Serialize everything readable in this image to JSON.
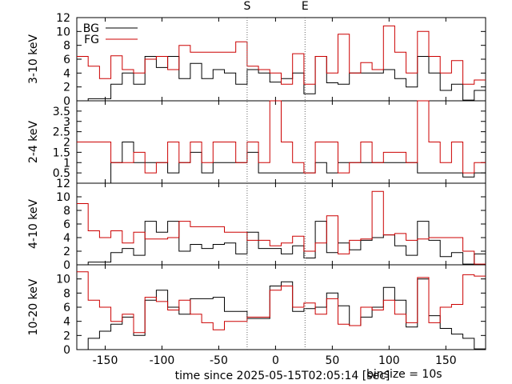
{
  "colors": {
    "fg": "#cc0000",
    "bg": "#000000",
    "frame": "#000000",
    "marker": "#666666"
  },
  "markers": [
    {
      "label": "S",
      "x": -25
    },
    {
      "label": "E",
      "x": 26
    }
  ],
  "chart_data": {
    "type": "line",
    "style": "step",
    "x_axis": {
      "label": "time since 2025-05-15T02:05:14 [sec]",
      "range": [
        -175,
        185
      ],
      "ticks": [
        -150,
        -100,
        -50,
        0,
        50,
        100,
        150
      ]
    },
    "binsize_label": "binsize = 10s",
    "legend": {
      "position": "top-left",
      "entries": [
        "BG",
        "FG"
      ]
    },
    "bin_edges": [
      -175,
      -165,
      -155,
      -145,
      -135,
      -125,
      -115,
      -105,
      -95,
      -85,
      -75,
      -65,
      -55,
      -45,
      -35,
      -25,
      -15,
      -5,
      5,
      15,
      25,
      35,
      45,
      55,
      65,
      75,
      85,
      95,
      105,
      115,
      125,
      135,
      145,
      155,
      165,
      175,
      185
    ],
    "panels": [
      {
        "ylabel": "3-10 keV",
        "ylim": [
          0,
          12
        ],
        "yticks": [
          0,
          2,
          4,
          6,
          8,
          10,
          12
        ],
        "series": [
          {
            "name": "BG",
            "values": [
              0,
              0.3,
              0.3,
              2.4,
              4,
              2.4,
              6.4,
              4.8,
              6.4,
              3.2,
              5.4,
              3.2,
              4.5,
              4,
              2.4,
              4.5,
              4,
              2.7,
              3.2,
              4,
              1,
              6.4,
              2.6,
              2.4,
              4,
              4,
              4,
              4.5,
              3.2,
              2,
              6.4,
              4,
              1.5,
              2.4,
              0.1,
              1.5
            ]
          },
          {
            "name": "FG",
            "values": [
              6.4,
              5,
              3.2,
              6.5,
              4.5,
              4,
              6,
              6.4,
              4.5,
              8,
              7,
              7,
              7,
              7,
              8.5,
              5,
              4.5,
              4,
              2.4,
              6.8,
              2.4,
              6.4,
              4,
              9.6,
              4,
              5.5,
              4.5,
              10.8,
              7,
              4,
              10,
              6.4,
              4,
              5.8,
              2.4,
              3
            ]
          }
        ]
      },
      {
        "ylabel": "2-4 keV",
        "ylim": [
          0,
          4
        ],
        "yticks": [
          0.5,
          1,
          1.5,
          2,
          2.5,
          3,
          3.5
        ],
        "series": [
          {
            "name": "BG",
            "values": [
              0,
              0,
              0,
              1,
              2,
              1,
              1,
              1,
              0.5,
              1,
              1.5,
              0.5,
              1,
              1,
              1,
              1.5,
              0.5,
              0.5,
              0.5,
              0.5,
              0.5,
              1,
              0.5,
              1,
              1,
              1,
              1,
              1,
              1,
              1,
              0.5,
              0.5,
              0.5,
              0.5,
              0.3,
              0.5
            ]
          },
          {
            "name": "FG",
            "values": [
              2,
              2,
              2,
              1,
              1,
              1.5,
              0.5,
              1,
              2,
              1,
              2,
              1,
              2,
              2,
              1,
              2,
              1,
              4,
              2,
              1,
              0.5,
              2,
              2,
              0.5,
              1,
              2,
              1,
              1.5,
              1.5,
              1,
              4,
              2,
              1,
              2,
              0.5,
              1
            ]
          }
        ]
      },
      {
        "ylabel": "4-10 keV",
        "ylim": [
          0,
          12
        ],
        "yticks": [
          0,
          2,
          4,
          6,
          8,
          10,
          12
        ],
        "series": [
          {
            "name": "BG",
            "values": [
              0,
              0.4,
              0.4,
              1.8,
              2.4,
              1.4,
              6.4,
              4.8,
              6.4,
              2,
              3,
              2.4,
              3,
              3.2,
              1.6,
              4.8,
              2.4,
              2.4,
              1.6,
              2.8,
              1,
              6.4,
              1.8,
              3.2,
              2.2,
              3.6,
              4,
              4.4,
              2.8,
              1.4,
              6.4,
              3.6,
              1.2,
              1.8,
              0.1,
              1.6
            ]
          },
          {
            "name": "FG",
            "values": [
              9,
              5,
              4,
              5,
              3.2,
              4.8,
              3.8,
              3.8,
              4,
              6.4,
              5.6,
              5.6,
              5.6,
              4.8,
              4.8,
              3.6,
              3.6,
              2.8,
              3.2,
              4.2,
              2,
              3.2,
              7.2,
              1.6,
              3.6,
              3.8,
              10.8,
              4.4,
              4.6,
              3.6,
              3.8,
              4,
              4,
              4,
              2,
              0.1
            ]
          }
        ]
      },
      {
        "ylabel": "10-20 keV",
        "ylim": [
          0,
          12
        ],
        "yticks": [
          0,
          2,
          4,
          6,
          8,
          10
        ],
        "series": [
          {
            "name": "BG",
            "values": [
              0,
              1.6,
              2.6,
              3.6,
              4.6,
              2,
              7,
              8.4,
              6,
              5,
              7.2,
              7.2,
              7.4,
              5.4,
              5.4,
              4.4,
              4.4,
              9,
              9.6,
              5.4,
              5.8,
              6,
              8,
              6.2,
              3.4,
              4.6,
              6,
              8.8,
              7,
              3.2,
              10,
              4.8,
              3,
              2.2,
              1.6,
              0.1
            ]
          },
          {
            "name": "FG",
            "values": [
              11,
              7,
              6,
              4,
              5,
              2.4,
              7.4,
              6.8,
              5.6,
              7,
              5,
              3.8,
              2.8,
              4,
              4,
              4.6,
              4.6,
              8.4,
              9,
              6,
              6.6,
              5,
              7.2,
              3.6,
              3.4,
              6,
              5.6,
              7,
              5,
              3.8,
              10.2,
              3.8,
              6,
              6.4,
              10.6,
              10.4
            ]
          }
        ]
      }
    ]
  }
}
